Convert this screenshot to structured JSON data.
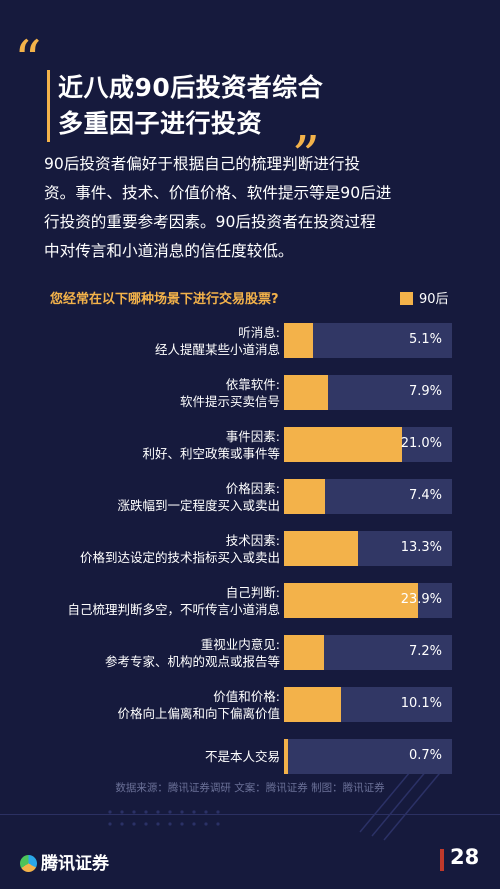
{
  "header": {
    "quote_open": "“",
    "quote_close": "„",
    "title_line1": "近八成90后投资者综合",
    "title_line2": "多重因子进行投资"
  },
  "description": {
    "lines": [
      "90后投资者偏好于根据自己的梳理判断进行投",
      "资。事件、技术、价值价格、软件提示等是90后进",
      "行投资的重要参考因素。90后投资者在投资过程",
      "中对传言和小道消息的信任度较低。"
    ]
  },
  "chart_data": {
    "type": "bar",
    "orientation": "horizontal",
    "question": "您经常在以下哪种场景下进行交易股票?",
    "legend": [
      "90后"
    ],
    "xlim": [
      0,
      30
    ],
    "unit": "%",
    "color": "#f3b24a",
    "categories": [
      {
        "line1": "听消息:",
        "line2": "经人提醒某些小道消息"
      },
      {
        "line1": "依靠软件:",
        "line2": "软件提示买卖信号"
      },
      {
        "line1": "事件因素:",
        "line2": "利好、利空政策或事件等"
      },
      {
        "line1": "价格因素:",
        "line2": "涨跌幅到一定程度买入或卖出"
      },
      {
        "line1": "技术因素:",
        "line2": "价格到达设定的技术指标买入或卖出"
      },
      {
        "line1": "自己判断:",
        "line2": "自己梳理判断多空，不听传言小道消息"
      },
      {
        "line1": "重视业内意见:",
        "line2": "参考专家、机构的观点或报告等"
      },
      {
        "line1": "价值和价格:",
        "line2": "价格向上偏离和向下偏离价值"
      },
      {
        "line1": "不是本人交易",
        "line2": ""
      }
    ],
    "series": [
      {
        "name": "90后",
        "values": [
          5.1,
          7.9,
          21.0,
          7.4,
          13.3,
          23.9,
          7.2,
          10.1,
          0.7
        ]
      }
    ],
    "value_labels": [
      "5.1%",
      "7.9%",
      "21.0%",
      "7.4%",
      "13.3%",
      "23.9%",
      "7.2%",
      "10.1%",
      "0.7%"
    ]
  },
  "footer": {
    "source": "数据来源：腾讯证券调研 文案：腾讯证券 制图：腾讯证券",
    "logo_text": "腾讯证券",
    "page_number": "28"
  }
}
